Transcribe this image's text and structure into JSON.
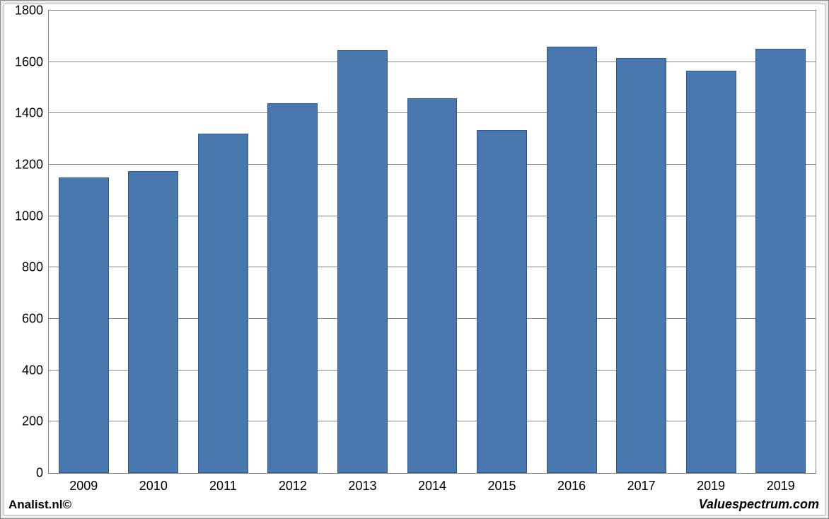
{
  "chart": {
    "type": "bar",
    "categories": [
      "2009",
      "2010",
      "2011",
      "2012",
      "2013",
      "2014",
      "2015",
      "2016",
      "2017",
      "2019",
      "2019"
    ],
    "values": [
      1150,
      1175,
      1320,
      1440,
      1645,
      1460,
      1335,
      1660,
      1615,
      1565,
      1652
    ],
    "bar_color": "#4878ad",
    "bar_border_color": "#38567e",
    "ylim": [
      0,
      1800
    ],
    "ytick_step": 200,
    "background_color": "#ffffff",
    "frame_background": "#ebebeb",
    "grid_color": "#878787",
    "axis_color": "#878787",
    "label_fontsize": 18,
    "label_fontcolor": "#000000",
    "bar_group_width_ratio": 0.72
  },
  "footer": {
    "left": "Analist.nl©",
    "right": "Valuespectrum.com"
  }
}
